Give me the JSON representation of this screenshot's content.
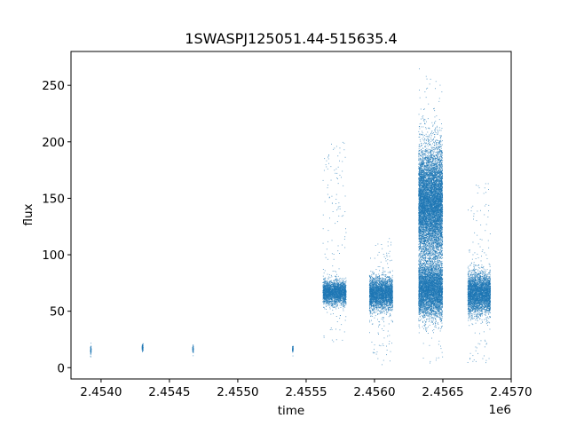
{
  "chart_data": {
    "type": "scatter",
    "title": "1SWASPJ125051.44-515635.4",
    "xlabel": "time",
    "ylabel": "flux",
    "x_offset_label": "1e6",
    "xlim": [
      2453780,
      2457000
    ],
    "ylim": [
      -10,
      280
    ],
    "x_ticks": [
      2454000,
      2454500,
      2455000,
      2455500,
      2456000,
      2456500,
      2457000
    ],
    "x_tick_labels": [
      "2.4540",
      "2.4545",
      "2.4550",
      "2.4555",
      "2.4560",
      "2.4565",
      "2.4570"
    ],
    "y_ticks": [
      0,
      50,
      100,
      150,
      200,
      250
    ],
    "y_tick_labels": [
      "0",
      "50",
      "100",
      "150",
      "200",
      "250"
    ],
    "grid": false,
    "legend": "none",
    "marker_color": "#1f77b4",
    "series": [
      {
        "clusters": [
          {
            "x_start": 2453920,
            "x_end": 2453925,
            "y_mean": 16,
            "y_spread": 2
          },
          {
            "x_start": 2454297,
            "x_end": 2454305,
            "y_mean": 18,
            "y_spread": 1.5
          },
          {
            "x_start": 2454667,
            "x_end": 2454672,
            "y_mean": 17,
            "y_spread": 1.5
          },
          {
            "x_start": 2455397,
            "x_end": 2455402,
            "y_mean": 17,
            "y_spread": 1.5
          },
          {
            "x_start": 2455620,
            "x_end": 2455790,
            "y_mean": 67,
            "y_spread": 5,
            "y_outlier_range": [
              20,
              200
            ]
          },
          {
            "x_start": 2455960,
            "x_end": 2456130,
            "y_mean": 66,
            "y_spread": 7,
            "y_outlier_range": [
              2,
              115
            ]
          },
          {
            "x_start": 2456320,
            "x_end": 2456495,
            "y_mean": 70,
            "y_spread": 12,
            "y_outlier_range": [
              3,
              268
            ]
          },
          {
            "x_start": 2456320,
            "x_end": 2456495,
            "y_mean": 145,
            "y_spread": 25
          },
          {
            "x_start": 2456680,
            "x_end": 2456845,
            "y_mean": 66,
            "y_spread": 9,
            "y_outlier_range": [
              2,
              165
            ]
          }
        ]
      }
    ]
  }
}
